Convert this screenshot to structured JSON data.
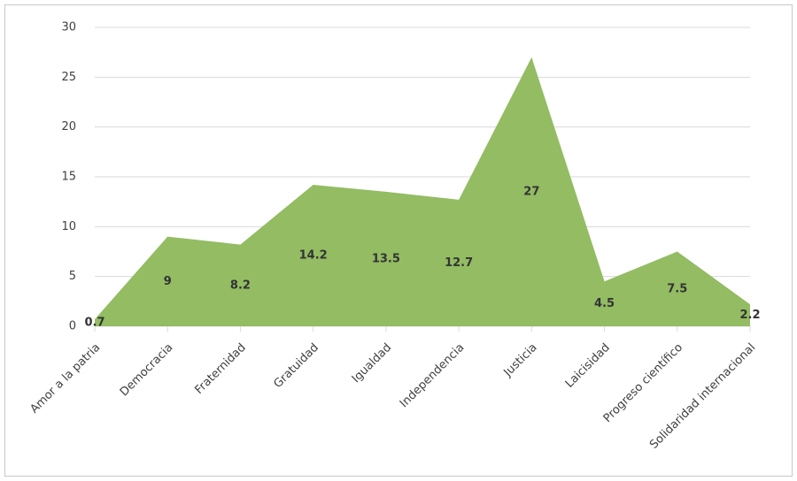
{
  "chart_data": {
    "type": "area",
    "categories": [
      "Amor a la patria",
      "Democracia",
      "Fraternidad",
      "Gratuidad",
      "Igualdad",
      "Independencia",
      "Justicia",
      "Laicisidad",
      "Progreso científico",
      "Solidaridad internacional"
    ],
    "values": [
      0.7,
      9,
      8.2,
      14.2,
      13.5,
      12.7,
      27,
      4.5,
      7.5,
      2.2
    ],
    "color": "#93bc63",
    "ylim": [
      0,
      30
    ],
    "yticks": [
      0,
      5,
      10,
      15,
      20,
      25,
      30
    ],
    "grid": true
  }
}
